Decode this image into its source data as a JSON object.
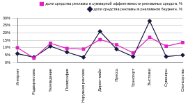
{
  "chart_data": {
    "type": "line",
    "categories": [
      "Интернет",
      "Радиореклама",
      "Телевидение",
      "Полиграфия",
      "Наружная реклама",
      "Директ-мейл",
      "Пресса",
      "Транспорт",
      "Выставки",
      "Сувениры",
      "Спонсорство"
    ],
    "series": [
      {
        "name": "доли средства рекламы в суммарной эффективности рекламных средств, %",
        "color": "#e020c0",
        "marker": "square",
        "line_style": "solid",
        "values": [
          10,
          3,
          13,
          9.5,
          9,
          15.5,
          12,
          6.5,
          17,
          11,
          13.5
        ]
      },
      {
        "name": "доли средства рекламы в рекламном бюджете, %",
        "color": "#1a1a40",
        "marker": "diamond",
        "line_style": "solid",
        "values": [
          6,
          3.5,
          11,
          7,
          3.5,
          21,
          9,
          4,
          28,
          4,
          5
        ]
      }
    ],
    "ylim": [
      0,
      30
    ],
    "yticks": [
      {
        "value": 0,
        "label": "0%"
      },
      {
        "value": 5,
        "label": "5%"
      },
      {
        "value": 10,
        "label": "10%"
      },
      {
        "value": 15,
        "label": "15%"
      },
      {
        "value": 20,
        "label": "20%"
      },
      {
        "value": 25,
        "label": "25%"
      },
      {
        "value": 30,
        "label": "30%"
      }
    ],
    "grid": true,
    "legend": "top"
  }
}
